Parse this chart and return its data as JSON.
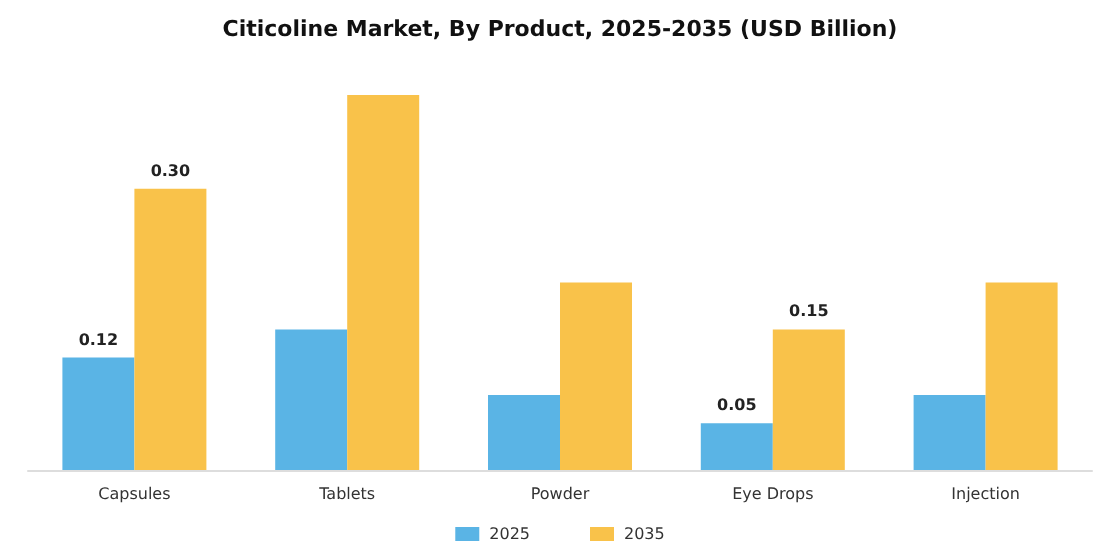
{
  "chart_data": {
    "type": "bar",
    "title": "Citicoline Market, By Product, 2025-2035 (USD Billion)",
    "categories": [
      "Capsules",
      "Tablets",
      "Powder",
      "Eye Drops",
      "Injection"
    ],
    "series": [
      {
        "name": "2025",
        "color": "#5ab4e5",
        "values": [
          0.12,
          0.15,
          0.08,
          0.05,
          0.08
        ],
        "value_labels": [
          "0.12",
          null,
          null,
          "0.05",
          null
        ]
      },
      {
        "name": "2035",
        "color": "#f9c24a",
        "values": [
          0.3,
          0.4,
          0.2,
          0.15,
          0.2
        ],
        "value_labels": [
          "0.30",
          null,
          null,
          "0.15",
          null
        ]
      }
    ],
    "legend": "bottom",
    "grid": false
  }
}
